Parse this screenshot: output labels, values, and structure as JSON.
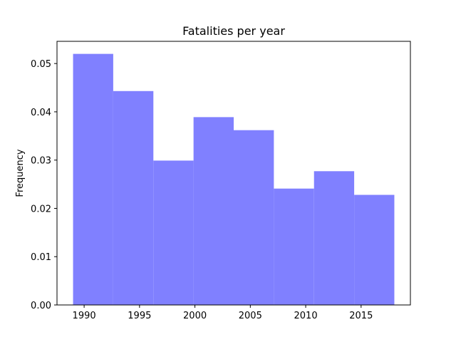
{
  "chart_data": {
    "type": "bar",
    "title": "Fatalities per year",
    "xlabel": "",
    "ylabel": "Frequency",
    "bins": [
      {
        "start": 1989.0,
        "end": 1992.625,
        "value": 0.052
      },
      {
        "start": 1992.625,
        "end": 1996.25,
        "value": 0.0443
      },
      {
        "start": 1996.25,
        "end": 1999.875,
        "value": 0.0299
      },
      {
        "start": 1999.875,
        "end": 2003.5,
        "value": 0.0389
      },
      {
        "start": 2003.5,
        "end": 2007.125,
        "value": 0.0362
      },
      {
        "start": 2007.125,
        "end": 2010.75,
        "value": 0.0241
      },
      {
        "start": 2010.75,
        "end": 2014.375,
        "value": 0.0277
      },
      {
        "start": 2014.375,
        "end": 2018.0,
        "value": 0.0228
      }
    ],
    "xlim": [
      1987.55,
      2019.45
    ],
    "ylim": [
      0,
      0.0546
    ],
    "xticks": [
      1990,
      1995,
      2000,
      2005,
      2010,
      2015
    ],
    "xtick_labels": [
      "1990",
      "1995",
      "2000",
      "2005",
      "2010",
      "2015"
    ],
    "yticks": [
      0.0,
      0.01,
      0.02,
      0.03,
      0.04,
      0.05
    ],
    "ytick_labels": [
      "0.00",
      "0.01",
      "0.02",
      "0.03",
      "0.04",
      "0.05"
    ],
    "bar_color": "#8080ff",
    "grid": false,
    "legend": "none"
  }
}
